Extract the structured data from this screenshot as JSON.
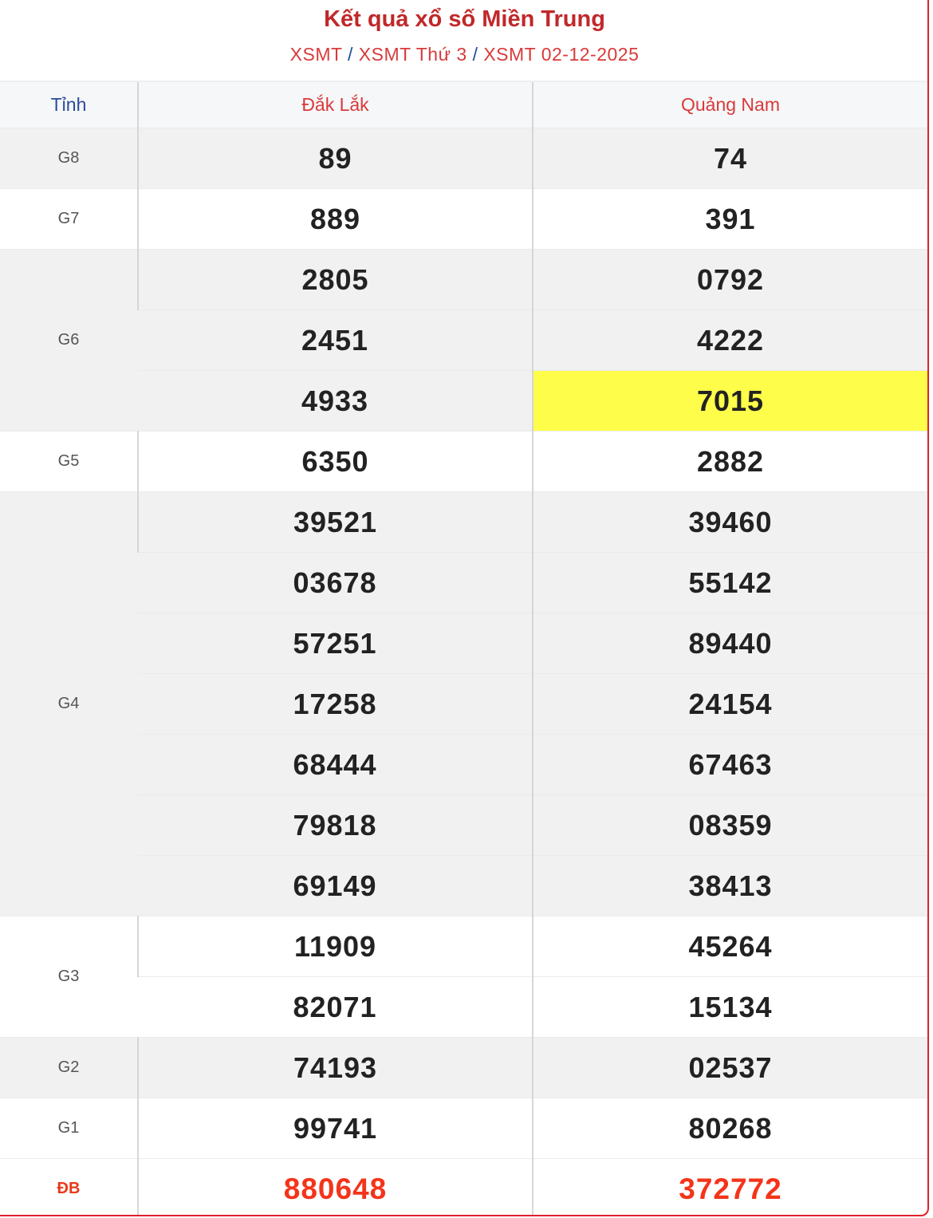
{
  "header": {
    "title": "Kết quả xổ số Miền Trung",
    "breadcrumb": [
      "XSMT",
      "XSMT Thứ 3",
      "XSMT 02-12-2025"
    ],
    "separator": "/"
  },
  "table": {
    "columns": [
      "Tỉnh",
      "Đắk Lắk",
      "Quảng Nam"
    ],
    "prizes": [
      {
        "label": "G8",
        "rows": [
          [
            "89",
            "74"
          ]
        ]
      },
      {
        "label": "G7",
        "rows": [
          [
            "889",
            "391"
          ]
        ]
      },
      {
        "label": "G6",
        "rows": [
          [
            "2805",
            "0792"
          ],
          [
            "2451",
            "4222"
          ],
          [
            "4933",
            "7015"
          ]
        ]
      },
      {
        "label": "G5",
        "rows": [
          [
            "6350",
            "2882"
          ]
        ]
      },
      {
        "label": "G4",
        "rows": [
          [
            "39521",
            "39460"
          ],
          [
            "03678",
            "55142"
          ],
          [
            "57251",
            "89440"
          ],
          [
            "17258",
            "24154"
          ],
          [
            "68444",
            "67463"
          ],
          [
            "79818",
            "08359"
          ],
          [
            "69149",
            "38413"
          ]
        ]
      },
      {
        "label": "G3",
        "rows": [
          [
            "11909",
            "45264"
          ],
          [
            "82071",
            "15134"
          ]
        ]
      },
      {
        "label": "G2",
        "rows": [
          [
            "74193",
            "02537"
          ]
        ]
      },
      {
        "label": "G1",
        "rows": [
          [
            "99741",
            "80268"
          ]
        ]
      },
      {
        "label": "ĐB",
        "rows": [
          [
            "880648",
            "372772"
          ]
        ]
      }
    ],
    "highlighted": {
      "prize": "G6",
      "row": 2,
      "column": 1,
      "color": "#fefe4a"
    }
  },
  "colors": {
    "title": "#c0282a",
    "link": "#d83a3a",
    "separator": "#1a4f9a",
    "special": "#f4341a",
    "border": "#e0202a"
  }
}
